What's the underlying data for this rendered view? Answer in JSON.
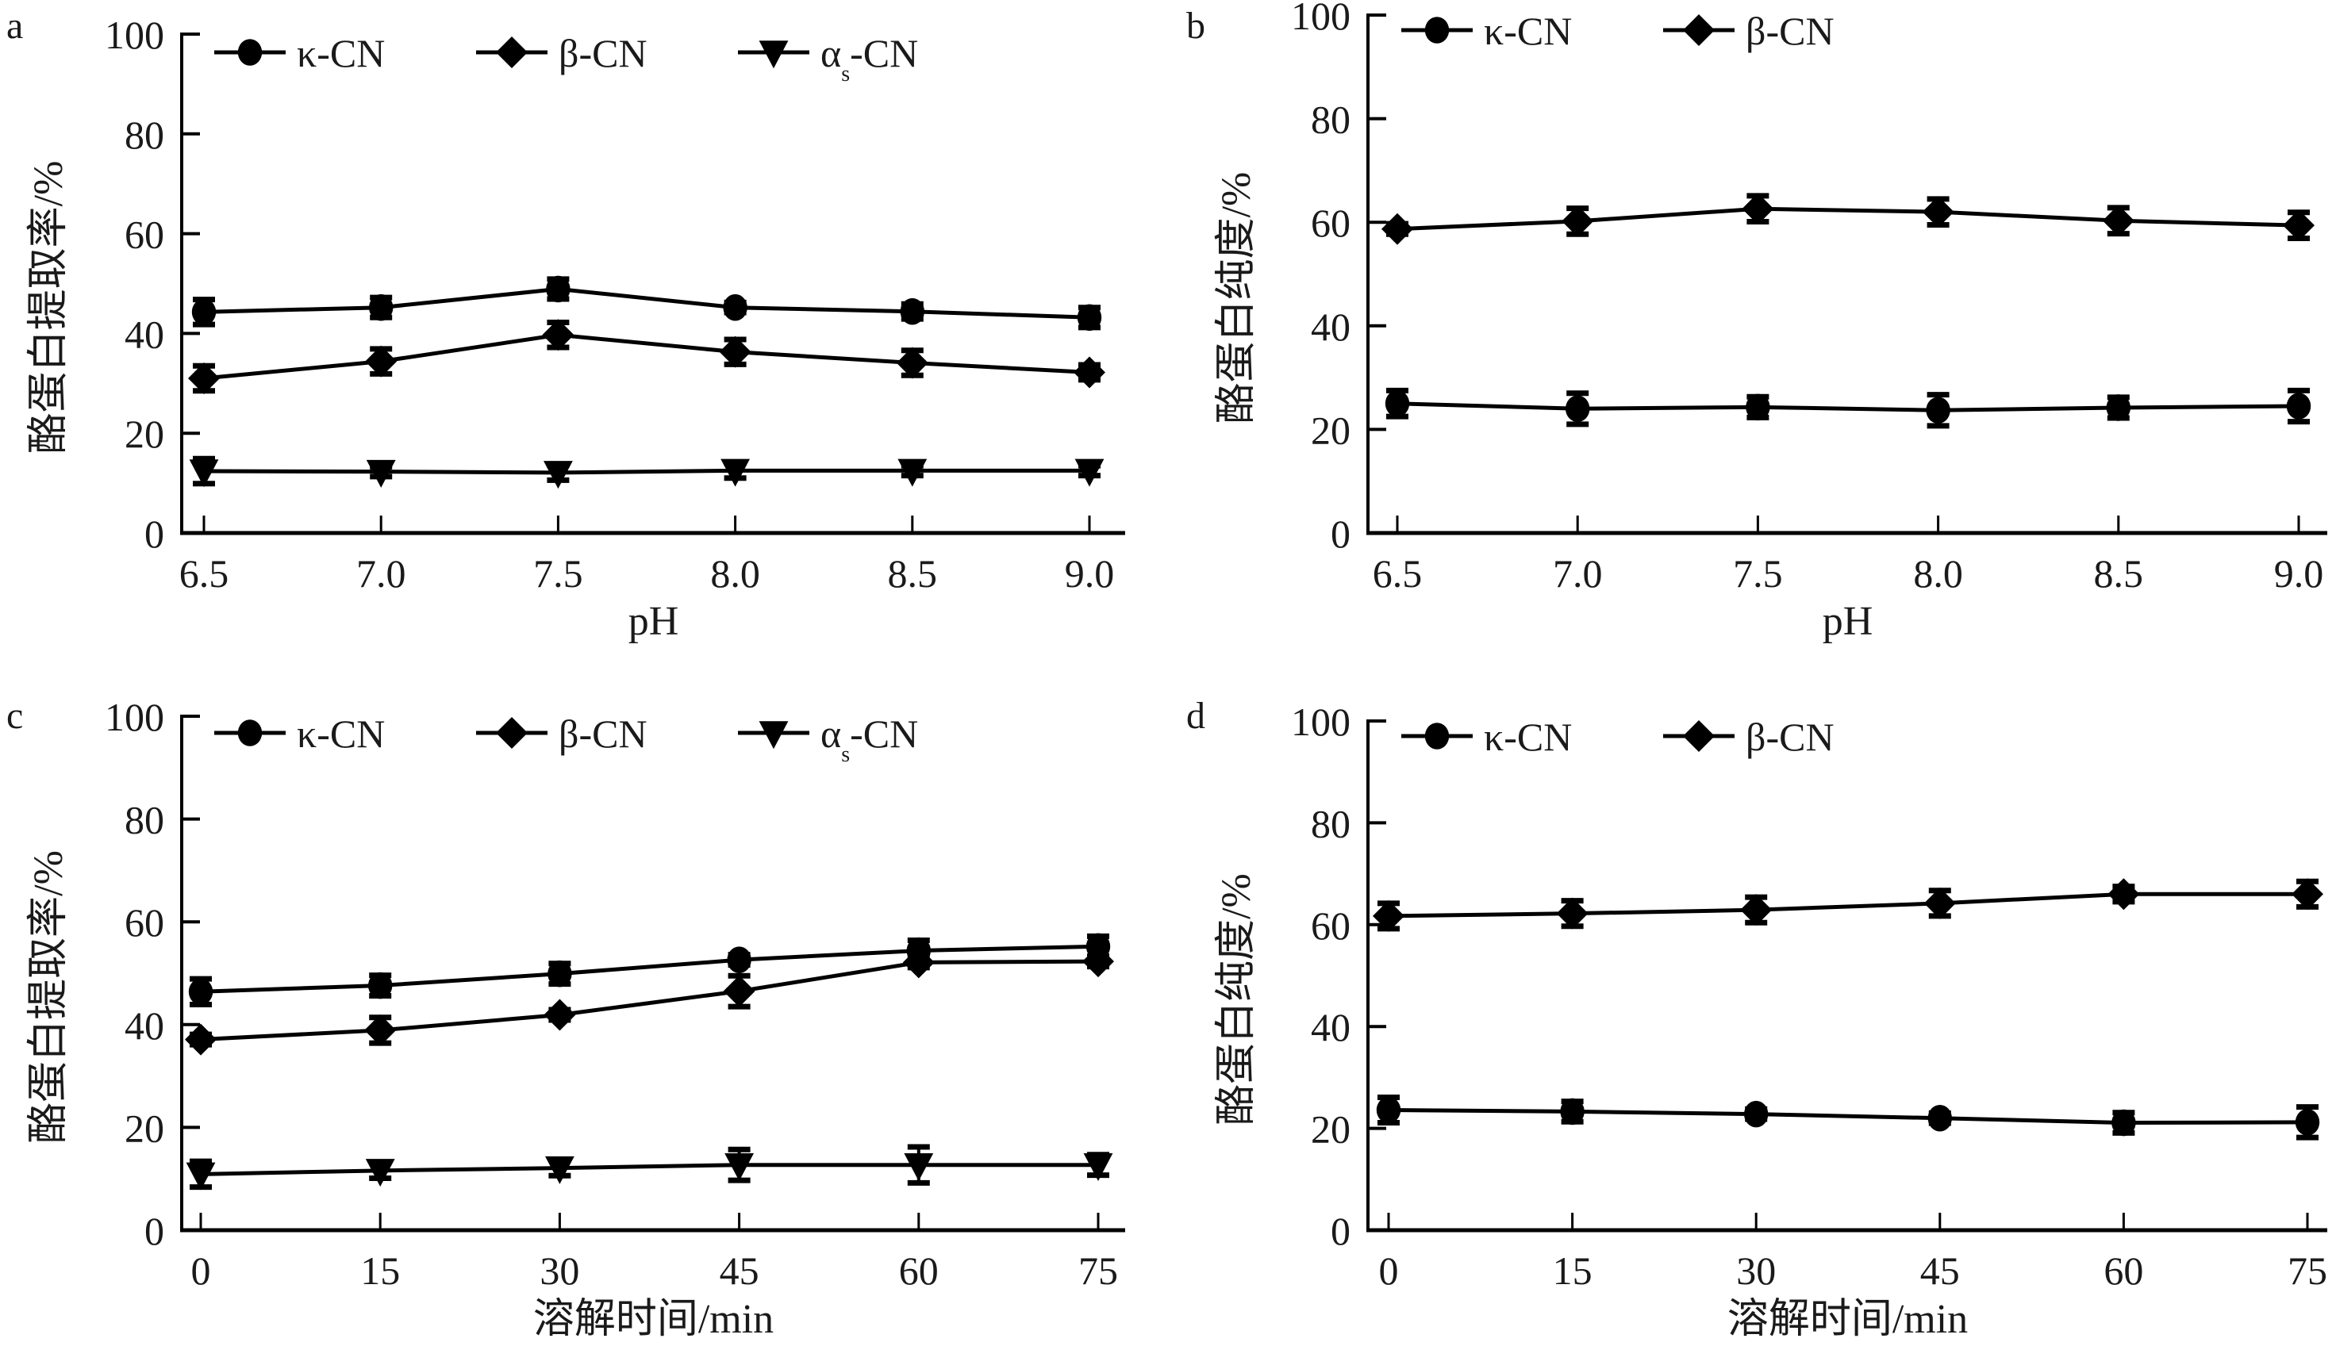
{
  "chart_data": [
    {
      "panel": "a",
      "type": "line",
      "title": "",
      "xlabel": "pH",
      "ylabel": "酪蛋白提取率/%",
      "x": [
        6.5,
        7.0,
        7.5,
        8.0,
        8.5,
        9.0
      ],
      "x_tick_labels": [
        "6.5",
        "7.0",
        "7.5",
        "8.0",
        "8.5",
        "9.0"
      ],
      "ylim": [
        0,
        100
      ],
      "y_ticks": [
        0,
        20,
        40,
        60,
        80,
        100
      ],
      "y_tick_labels": [
        "0",
        "20",
        "40",
        "60",
        "80",
        "100"
      ],
      "grid": false,
      "legend_position": "top",
      "series": [
        {
          "name": "κ-CN",
          "marker": "circle",
          "values": [
            44.3,
            45.2,
            48.9,
            45.2,
            44.4,
            43.2
          ],
          "errors": [
            2.5,
            2.0,
            2.0,
            1.0,
            1.5,
            2.0
          ]
        },
        {
          "name": "β-CN",
          "marker": "diamond",
          "values": [
            31.0,
            34.4,
            39.7,
            36.3,
            34.1,
            32.2
          ],
          "errors": [
            2.5,
            2.5,
            2.5,
            2.5,
            2.5,
            1.5
          ]
        },
        {
          "name": "αs-CN",
          "marker": "triangle-down",
          "values": [
            12.4,
            12.3,
            12.1,
            12.5,
            12.5,
            12.5
          ],
          "errors": [
            2.5,
            1.0,
            1.5,
            1.5,
            1.0,
            1.0
          ]
        }
      ]
    },
    {
      "panel": "b",
      "type": "line",
      "title": "",
      "xlabel": "pH",
      "ylabel": "酪蛋白纯度/%",
      "x": [
        6.5,
        7.0,
        7.5,
        8.0,
        8.5,
        9.0
      ],
      "x_tick_labels": [
        "6.5",
        "7.0",
        "7.5",
        "8.0",
        "8.5",
        "9.0"
      ],
      "ylim": [
        0,
        100
      ],
      "y_ticks": [
        0,
        20,
        40,
        60,
        80,
        100
      ],
      "y_tick_labels": [
        "0",
        "20",
        "40",
        "60",
        "80",
        "100"
      ],
      "grid": false,
      "legend_position": "top",
      "series": [
        {
          "name": "κ-CN",
          "marker": "circle",
          "values": [
            25.0,
            24.0,
            24.3,
            23.7,
            24.2,
            24.5
          ],
          "errors": [
            2.5,
            3.0,
            2.0,
            3.0,
            2.0,
            3.0
          ]
        },
        {
          "name": "β-CN",
          "marker": "diamond",
          "values": [
            58.7,
            60.2,
            62.6,
            62.0,
            60.3,
            59.4
          ],
          "errors": [
            1.0,
            2.5,
            2.5,
            2.5,
            2.5,
            2.5
          ]
        }
      ]
    },
    {
      "panel": "c",
      "type": "line",
      "title": "",
      "xlabel": "溶解时间/min",
      "ylabel": "酪蛋白提取率/%",
      "x": [
        0,
        15,
        30,
        45,
        60,
        75
      ],
      "x_tick_labels": [
        "0",
        "15",
        "30",
        "45",
        "60",
        "75"
      ],
      "ylim": [
        0,
        100
      ],
      "y_ticks": [
        0,
        20,
        40,
        60,
        80,
        100
      ],
      "y_tick_labels": [
        "0",
        "20",
        "40",
        "60",
        "80",
        "100"
      ],
      "grid": false,
      "legend_position": "top",
      "series": [
        {
          "name": "κ-CN",
          "marker": "circle",
          "values": [
            46.4,
            47.6,
            49.9,
            52.6,
            54.4,
            55.2
          ],
          "errors": [
            2.5,
            2.0,
            2.0,
            1.0,
            2.0,
            2.0
          ]
        },
        {
          "name": "β-CN",
          "marker": "diamond",
          "values": [
            37.1,
            38.9,
            41.9,
            46.5,
            52.1,
            52.3
          ],
          "errors": [
            1.0,
            2.5,
            1.0,
            3.0,
            1.0,
            1.0
          ]
        },
        {
          "name": "αs-CN",
          "marker": "triangle-down",
          "values": [
            10.9,
            11.6,
            12.1,
            12.7,
            12.7,
            12.7
          ],
          "errors": [
            2.5,
            1.5,
            1.5,
            3.0,
            3.5,
            2.0
          ]
        }
      ]
    },
    {
      "panel": "d",
      "type": "line",
      "title": "",
      "xlabel": "溶解时间/min",
      "ylabel": "酪蛋白纯度/%",
      "x": [
        0,
        15,
        30,
        45,
        60,
        75
      ],
      "x_tick_labels": [
        "0",
        "15",
        "30",
        "45",
        "60",
        "75"
      ],
      "ylim": [
        0,
        100
      ],
      "y_ticks": [
        0,
        20,
        40,
        60,
        80,
        100
      ],
      "y_tick_labels": [
        "0",
        "20",
        "40",
        "60",
        "80",
        "100"
      ],
      "grid": false,
      "legend_position": "top",
      "series": [
        {
          "name": "κ-CN",
          "marker": "circle",
          "values": [
            23.6,
            23.3,
            22.8,
            22.0,
            21.1,
            21.2
          ],
          "errors": [
            2.5,
            2.0,
            1.0,
            1.0,
            2.0,
            3.0
          ]
        },
        {
          "name": "β-CN",
          "marker": "diamond",
          "values": [
            61.7,
            62.2,
            62.9,
            64.2,
            66.0,
            66.0
          ],
          "errors": [
            2.5,
            2.5,
            2.5,
            2.5,
            1.5,
            2.5
          ]
        }
      ]
    }
  ],
  "panels": {
    "a": {
      "letter": "a",
      "legend": [
        "κ-CN",
        "β-CN",
        "α",
        "s",
        "-CN"
      ]
    },
    "b": {
      "letter": "b"
    },
    "c": {
      "letter": "c"
    },
    "d": {
      "letter": "d"
    }
  },
  "colors": {
    "ink": "#000000",
    "text": "#1a1a1a",
    "background": "#ffffff"
  }
}
